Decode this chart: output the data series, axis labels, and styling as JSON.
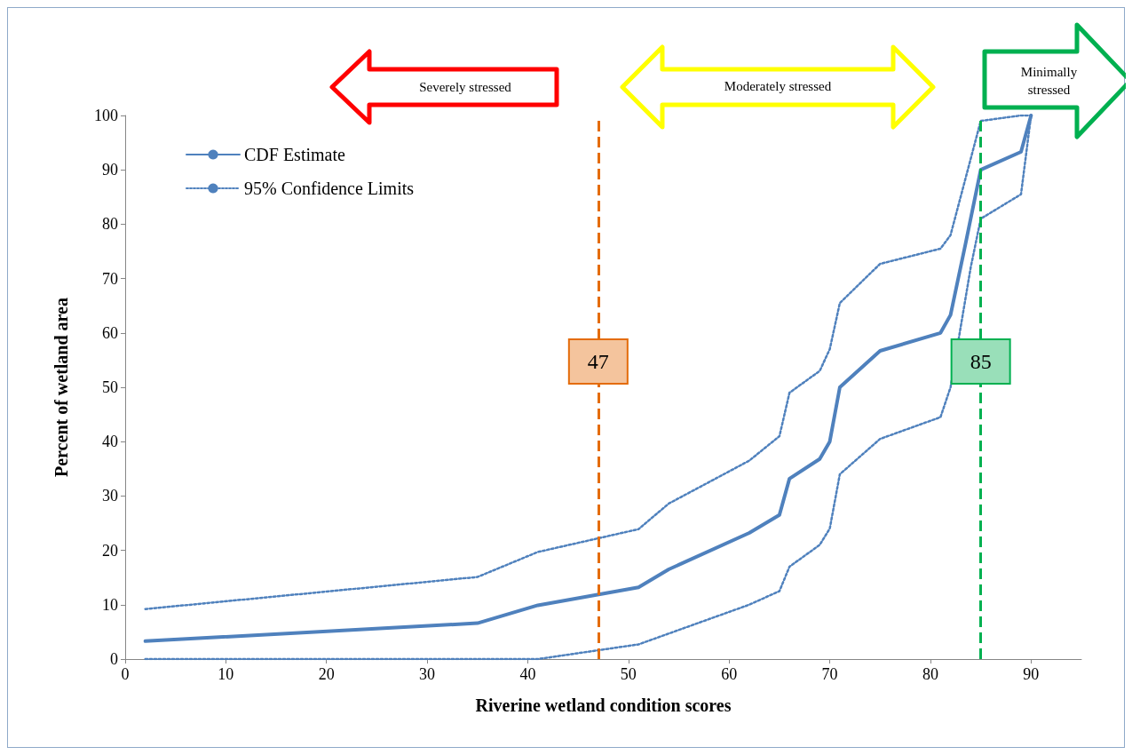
{
  "chart_data": {
    "type": "line",
    "xlabel": "Riverine wetland condition scores",
    "ylabel": "Percent of wetland area",
    "xlim": [
      0,
      95
    ],
    "xticks": [
      0,
      10,
      20,
      30,
      40,
      50,
      60,
      70,
      80,
      90
    ],
    "ylim": [
      0,
      100
    ],
    "yticks": [
      0,
      10,
      20,
      30,
      40,
      50,
      60,
      70,
      80,
      90,
      100
    ],
    "grid": false,
    "legend": "top left",
    "series": [
      {
        "name": "CDF Estimate",
        "color": "#4f81bd",
        "line_style": "solid",
        "x": [
          2,
          35,
          41,
          51,
          54,
          62,
          65,
          66,
          69,
          70,
          71,
          75,
          81,
          82,
          83.5,
          85,
          89,
          90
        ],
        "values": [
          3.3,
          6.6,
          9.9,
          13.2,
          16.5,
          23.2,
          26.5,
          33.2,
          36.8,
          40,
          50,
          56.7,
          60,
          63.3,
          76.5,
          90,
          93.3,
          100
        ]
      },
      {
        "name": "95% Confidence Limits",
        "color": "#4f81bd",
        "line_style": "dotted",
        "x": [
          2,
          35,
          41,
          51,
          54,
          62,
          65,
          66,
          69,
          70,
          71,
          75,
          81,
          82,
          85,
          89,
          90
        ],
        "values": [
          9.2,
          15.1,
          19.7,
          23.9,
          28.6,
          36.5,
          41,
          49,
          53,
          57,
          65.5,
          72.7,
          75.5,
          78,
          99,
          100,
          100
        ]
      },
      {
        "color": "#4f81bd",
        "line_style": "dotted",
        "x": [
          2,
          41,
          51,
          62,
          65,
          66,
          69,
          70,
          71,
          75,
          81,
          82,
          84,
          85,
          89,
          90
        ],
        "values": [
          0,
          0,
          2.7,
          10,
          12.5,
          17,
          21,
          24,
          34,
          40.5,
          44.5,
          50,
          72,
          81,
          85.5,
          100
        ]
      }
    ],
    "ref_lines": [
      {
        "axis": "x",
        "value": 47,
        "label": "47",
        "color": "#e46c0a",
        "line_style": "dashed"
      },
      {
        "axis": "x",
        "value": 85,
        "label": "85",
        "color": "#00b050",
        "line_style": "dashed"
      }
    ],
    "annotations": [
      "Severely stressed",
      "Moderately stressed",
      "Minimally stressed"
    ]
  }
}
